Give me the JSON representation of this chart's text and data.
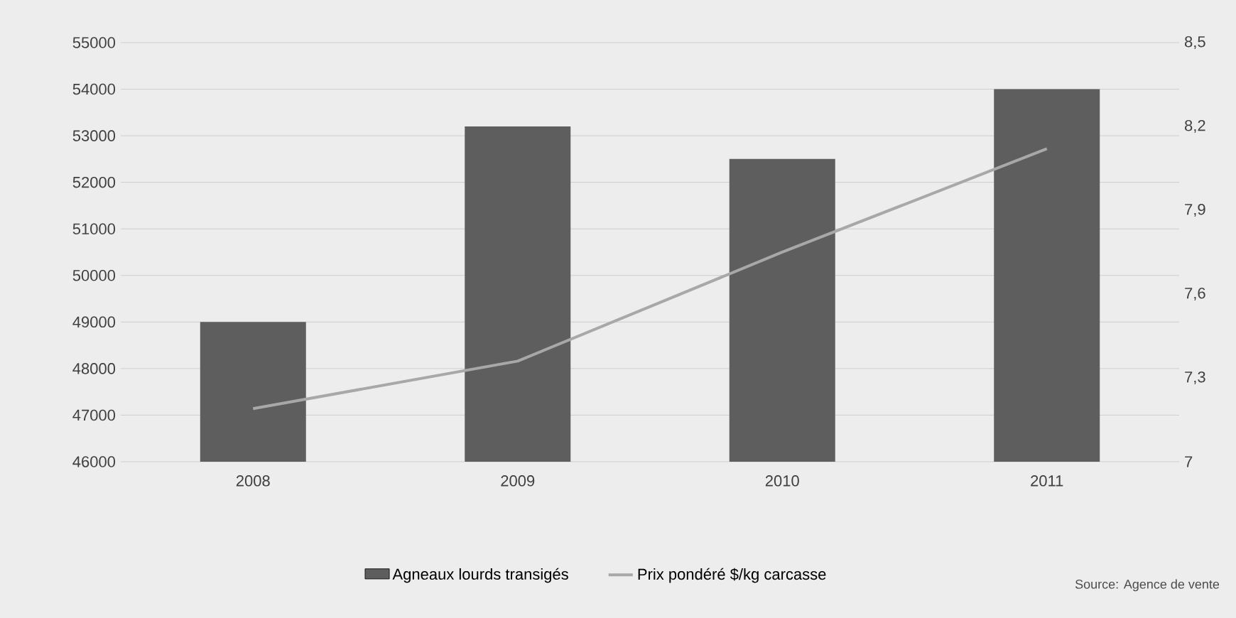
{
  "chart_data": {
    "type": "bar",
    "categories": [
      "2008",
      "2009",
      "2010",
      "2011"
    ],
    "series": [
      {
        "name": "Agneaux lourds transigés",
        "color": "#5e5e5e",
        "values": [
          49000,
          53200,
          52500,
          54000
        ]
      },
      {
        "name": "Prix pondéré $/kg carcasse",
        "type": "line",
        "axis": "y2",
        "color": "#a8a8a8",
        "values": [
          7.19,
          7.36,
          7.75,
          8.12
        ]
      }
    ],
    "ylim": [
      46000,
      55000
    ],
    "yticks": [
      46000,
      47000,
      48000,
      49000,
      50000,
      51000,
      52000,
      53000,
      54000,
      55000
    ],
    "y2lim": [
      7,
      8.5
    ],
    "y2ticks": [
      7,
      {
        "value": 7.3,
        "label": "7,3"
      },
      {
        "value": 7.6,
        "label": "7,6"
      },
      {
        "value": 7.9,
        "label": "7,9"
      },
      {
        "value": 8.2,
        "label": "8,2"
      },
      {
        "value": 8.5,
        "label": "8,5"
      }
    ],
    "grid": "y",
    "legend": "bottom",
    "marker": "none",
    "annotations": [
      "Source: Agence de vente"
    ]
  }
}
